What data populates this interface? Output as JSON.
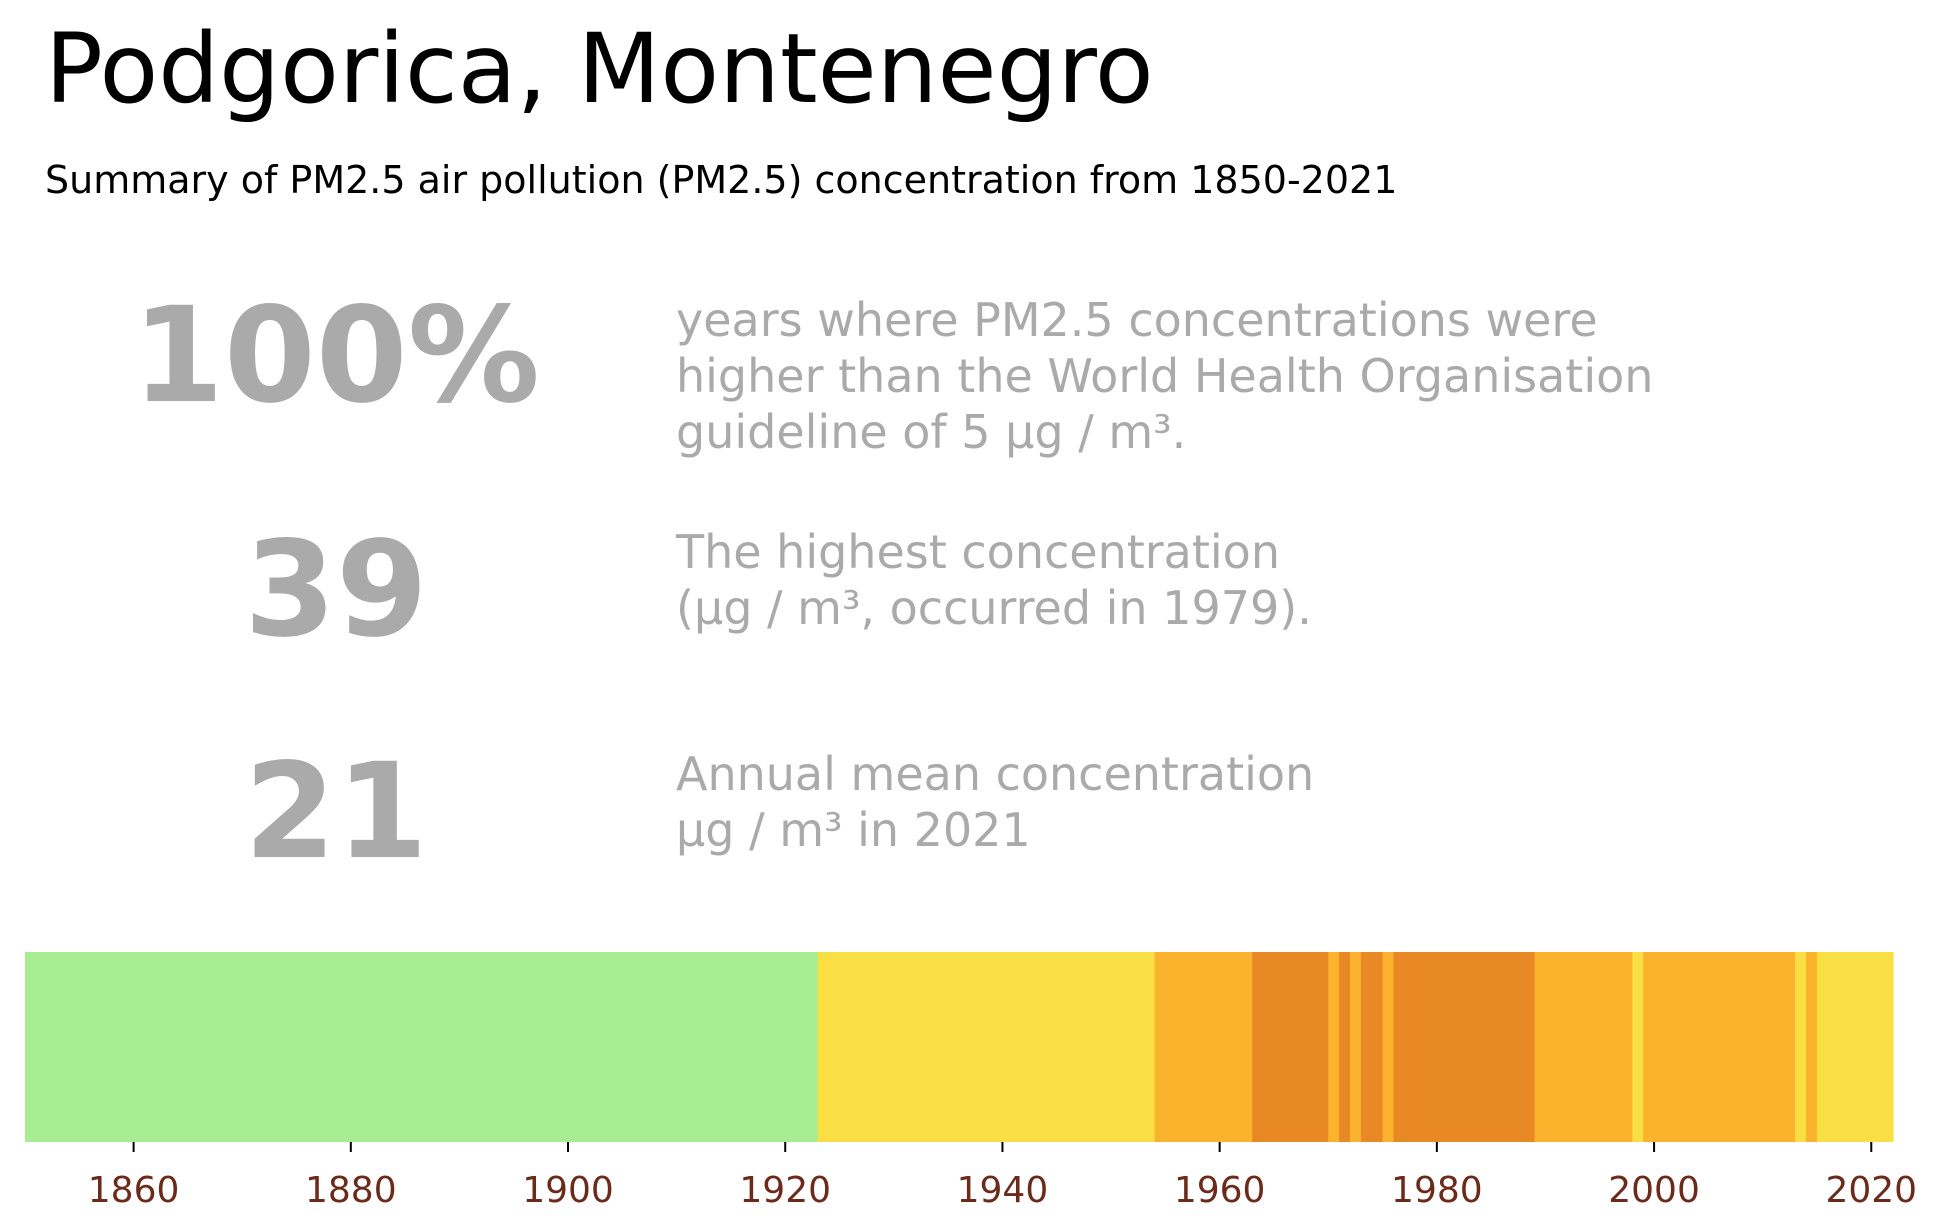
{
  "title": "Podgorica, Montenegro",
  "subtitle": "Summary of PM2.5 air pollution (PM2.5) concentration from 1850-2021",
  "stats": [
    {
      "value": "100%",
      "description": "years where PM2.5 concentrations were\nhigher than the World Health Organisation\nguideline of 5 µg / m³."
    },
    {
      "value": "39",
      "description": "The highest concentration\n(µg / m³, occurred in 1979)."
    },
    {
      "value": "21",
      "description": "Annual mean concentration\nµg / m³ in 2021"
    }
  ],
  "chart_data": {
    "type": "heatmap",
    "title": "",
    "xlabel": "",
    "ylabel": "",
    "xlim": [
      1850,
      2022
    ],
    "x_ticks": [
      1860,
      1880,
      1900,
      1920,
      1940,
      1960,
      1980,
      2000,
      2020
    ],
    "tick_color": "#6b2a1a",
    "grid": false,
    "segments": [
      {
        "start": 1850,
        "end": 1923,
        "color": "#a8ed91"
      },
      {
        "start": 1923,
        "end": 1954,
        "color": "#f9df44"
      },
      {
        "start": 1954,
        "end": 1963,
        "color": "#fbb32d"
      },
      {
        "start": 1963,
        "end": 1970,
        "color": "#e88926"
      },
      {
        "start": 1970,
        "end": 1971,
        "color": "#fbb32d"
      },
      {
        "start": 1971,
        "end": 1972,
        "color": "#e88926"
      },
      {
        "start": 1972,
        "end": 1973,
        "color": "#fbb32d"
      },
      {
        "start": 1973,
        "end": 1975,
        "color": "#e88926"
      },
      {
        "start": 1975,
        "end": 1976,
        "color": "#fbb32d"
      },
      {
        "start": 1976,
        "end": 1989,
        "color": "#e88926"
      },
      {
        "start": 1989,
        "end": 1998,
        "color": "#fbb32d"
      },
      {
        "start": 1998,
        "end": 1999,
        "color": "#f9df44"
      },
      {
        "start": 1999,
        "end": 2013,
        "color": "#fbb32d"
      },
      {
        "start": 2013,
        "end": 2014,
        "color": "#f9df44"
      },
      {
        "start": 2014,
        "end": 2015,
        "color": "#fbb32d"
      },
      {
        "start": 2015,
        "end": 2022,
        "color": "#f9df44"
      }
    ]
  }
}
